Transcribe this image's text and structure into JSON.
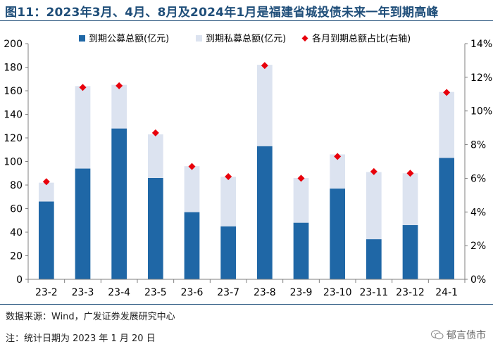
{
  "header": {
    "title": "图11：2023年3月、4月、8月及2024年1月是福建省城投债未来一年到期高峰"
  },
  "chart_data": {
    "type": "bar",
    "stacked": true,
    "categories": [
      "23-2",
      "23-3",
      "23-4",
      "23-5",
      "23-6",
      "23-7",
      "23-8",
      "23-9",
      "23-10",
      "23-11",
      "23-12",
      "24-1"
    ],
    "series": [
      {
        "name": "到期公募总额(亿元)",
        "axis": "left",
        "color": "#1f67a6",
        "values": [
          66,
          94,
          128,
          86,
          57,
          45,
          113,
          48,
          77,
          34,
          46,
          103
        ]
      },
      {
        "name": "到期私募总额(亿元)",
        "axis": "left",
        "color": "#dce3f0",
        "values": [
          16,
          70,
          37,
          37,
          39,
          42,
          69,
          38,
          29,
          57,
          44,
          56
        ]
      },
      {
        "name": "各月到期总额占比(右轴)",
        "axis": "right",
        "type": "scatter",
        "marker": "diamond",
        "color": "#e8000b",
        "values": [
          5.8,
          11.4,
          11.5,
          8.7,
          6.7,
          6.1,
          12.7,
          6.0,
          7.3,
          6.4,
          6.3,
          11.1
        ]
      }
    ],
    "y_left": {
      "min": 0,
      "max": 200,
      "step": 20,
      "ticks": [
        "0",
        "20",
        "40",
        "60",
        "80",
        "100",
        "120",
        "140",
        "160",
        "180",
        "200"
      ]
    },
    "y_right": {
      "min": 0,
      "max": 14,
      "step": 2,
      "ticks": [
        "0%",
        "2%",
        "4%",
        "6%",
        "8%",
        "10%",
        "12%",
        "14%"
      ]
    },
    "legend_position": "top",
    "grid": false
  },
  "footer": {
    "source": "数据来源：Wind，广发证券发展研究中心",
    "note": "注：统计日期为 2023 年 1 月 20 日",
    "brand": "郁言债市"
  }
}
